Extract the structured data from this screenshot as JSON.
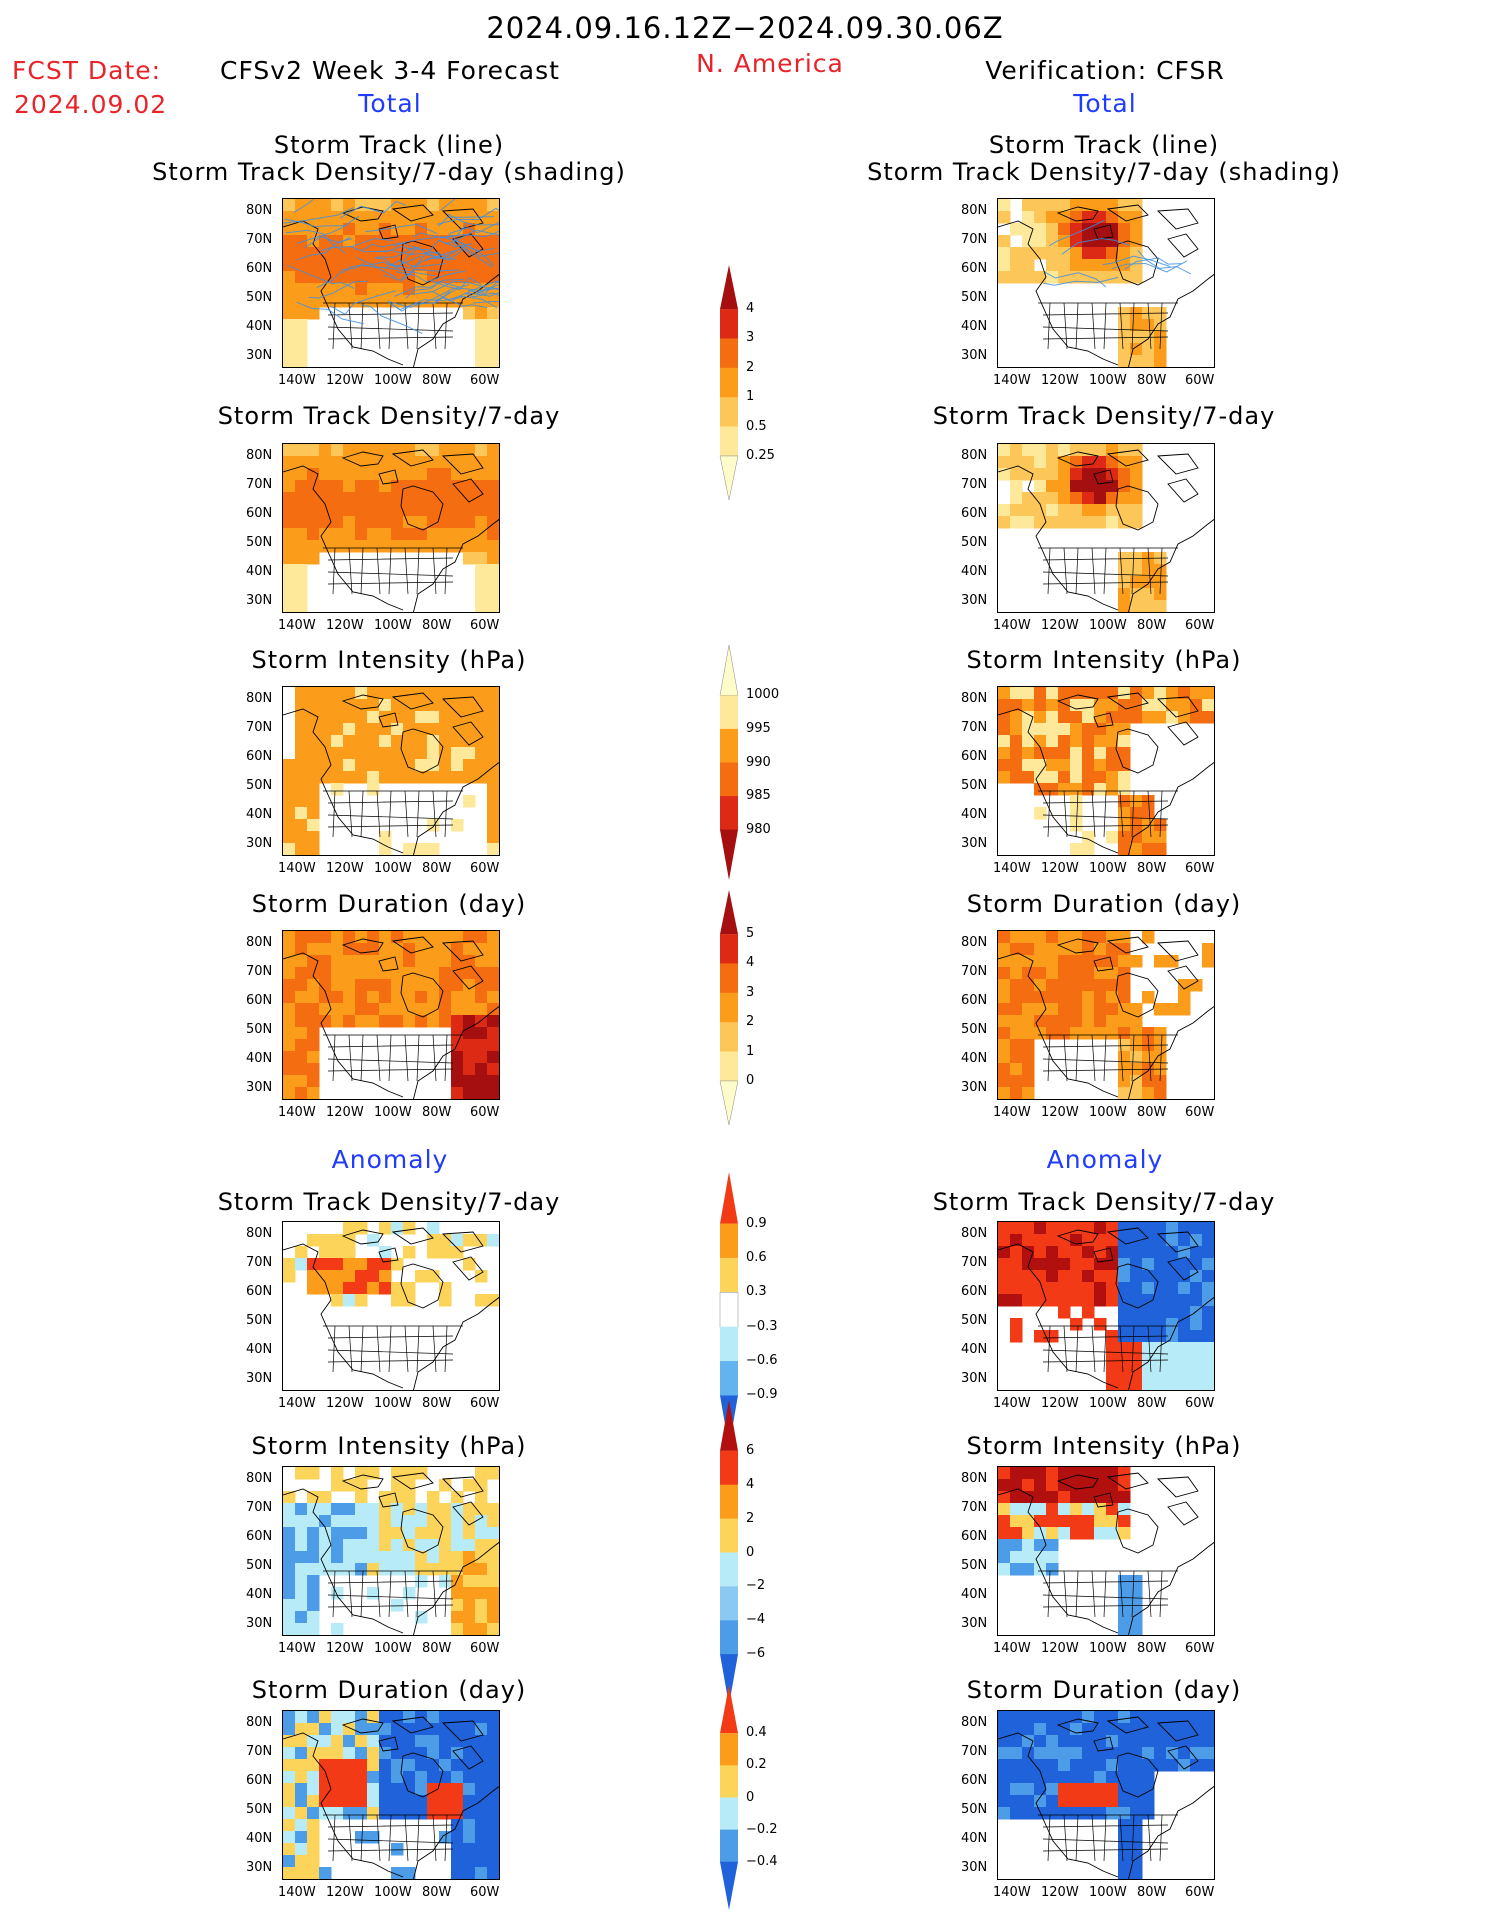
{
  "header": {
    "date_range": "2024.09.16.12Z−2024.09.30.06Z",
    "fcst_label": "FCST Date:",
    "fcst_date": "2024.09.02",
    "model_title": "CFSv2 Week 3-4 Forecast",
    "region": "N. America",
    "verification_title": "Verification: CFSR"
  },
  "sections": {
    "total_label": "Total",
    "anomaly_label": "Anomaly"
  },
  "panel_titles": {
    "storm_track_line": "Storm Track (line)",
    "storm_track_density_shading": "Storm Track Density/7-day (shading)",
    "storm_track_density": "Storm Track Density/7-day",
    "storm_intensity": "Storm Intensity (hPa)",
    "storm_duration": "Storm Duration (day)"
  },
  "axes": {
    "lat_labels": [
      "80N",
      "70N",
      "60N",
      "50N",
      "40N",
      "30N"
    ],
    "lon_labels": [
      "140W",
      "120W",
      "100W",
      "80W",
      "60W"
    ]
  },
  "colorbars": [
    {
      "id": "track-density-total",
      "labels": [
        "4",
        "3",
        "2",
        "1",
        "0.5",
        "0.25"
      ],
      "colors": [
        "#a50f0f",
        "#dc2a14",
        "#f46d10",
        "#fb9d1a",
        "#fdc659",
        "#fee89a",
        "#fffccc"
      ]
    },
    {
      "id": "intensity-total",
      "labels": [
        "1000",
        "995",
        "990",
        "985",
        "980"
      ],
      "colors": [
        "#fffccc",
        "#fee89a",
        "#fb9d1a",
        "#f46d10",
        "#dc2a14",
        "#a50f0f"
      ]
    },
    {
      "id": "duration-total",
      "labels": [
        "5",
        "4",
        "3",
        "2",
        "1",
        "0"
      ],
      "colors": [
        "#a50f0f",
        "#dc2a14",
        "#f46d10",
        "#fb9d1a",
        "#fdc659",
        "#fee89a",
        "#fffccc"
      ]
    },
    {
      "id": "track-density-anom",
      "labels": [
        "0.9",
        "0.6",
        "0.3",
        "−0.3",
        "−0.6",
        "−0.9"
      ],
      "colors": [
        "#f23a16",
        "#fb9d1a",
        "#fdd45a",
        "#ffffff",
        "#b7ebf7",
        "#62b3ee",
        "#1f62d9"
      ]
    },
    {
      "id": "intensity-anom",
      "labels": [
        "6",
        "4",
        "2",
        "0",
        "−2",
        "−4",
        "−6"
      ],
      "colors": [
        "#b2100e",
        "#f23a16",
        "#fb9d1a",
        "#fdd45a",
        "#b7ebf7",
        "#8cc9f2",
        "#4d9ce8",
        "#1f62d9"
      ]
    },
    {
      "id": "duration-anom",
      "labels": [
        "0.4",
        "0.2",
        "0",
        "−0.2",
        "−0.4"
      ],
      "colors": [
        "#f23a16",
        "#fb9d1a",
        "#fdd45a",
        "#b7ebf7",
        "#4d9ce8",
        "#1f62d9"
      ]
    }
  ],
  "colors": {
    "title_red": "#e8232a",
    "section_blue": "#1f3cff",
    "storm_track_line": "#3f8fe0"
  }
}
